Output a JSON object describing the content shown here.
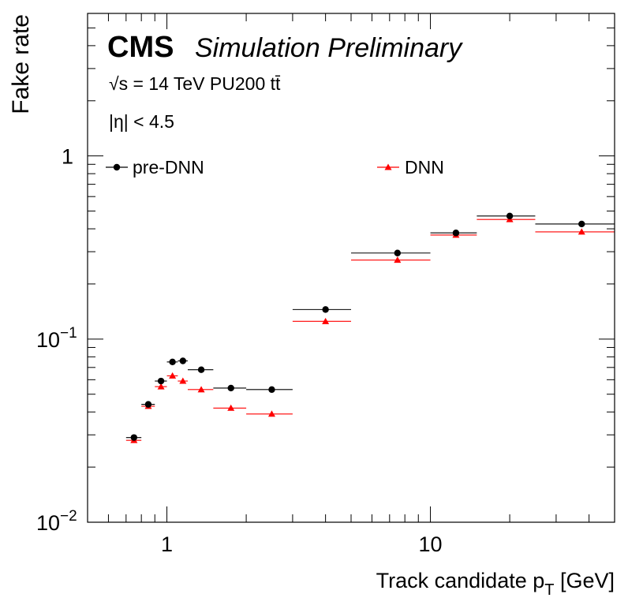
{
  "chart_data": {
    "type": "scatter",
    "title": "CMS",
    "subtitle": "Simulation Preliminary",
    "annotations": [
      "√s = 14 TeV PU200 tt̄",
      "|η| < 4.5"
    ],
    "xlabel": "Track candidate p_T [GeV]",
    "ylabel": "Fake rate",
    "xscale": "log",
    "yscale": "log",
    "xlim": [
      0.5,
      50
    ],
    "ylim": [
      0.01,
      6
    ],
    "x_tick_labels": [
      {
        "value": 1,
        "label": "1"
      },
      {
        "value": 10,
        "label": "10"
      }
    ],
    "y_tick_labels": [
      {
        "value": 0.01,
        "base": "10",
        "exp": "−2"
      },
      {
        "value": 0.1,
        "base": "10",
        "exp": "−1"
      },
      {
        "value": 1,
        "base": "1",
        "exp": ""
      }
    ],
    "legend_position": "top",
    "grid": false,
    "series": [
      {
        "name": "pre-DNN",
        "color": "#000000",
        "marker": "circle",
        "points": [
          {
            "x": 0.75,
            "xlo": 0.7,
            "xhi": 0.8,
            "y": 0.029
          },
          {
            "x": 0.85,
            "xlo": 0.8,
            "xhi": 0.9,
            "y": 0.044
          },
          {
            "x": 0.95,
            "xlo": 0.9,
            "xhi": 1.0,
            "y": 0.059
          },
          {
            "x": 1.05,
            "xlo": 1.0,
            "xhi": 1.1,
            "y": 0.075
          },
          {
            "x": 1.15,
            "xlo": 1.1,
            "xhi": 1.2,
            "y": 0.076
          },
          {
            "x": 1.35,
            "xlo": 1.2,
            "xhi": 1.5,
            "y": 0.068
          },
          {
            "x": 1.75,
            "xlo": 1.5,
            "xhi": 2.0,
            "y": 0.054
          },
          {
            "x": 2.5,
            "xlo": 2.0,
            "xhi": 3.0,
            "y": 0.053
          },
          {
            "x": 4.0,
            "xlo": 3.0,
            "xhi": 5.0,
            "y": 0.145
          },
          {
            "x": 7.5,
            "xlo": 5.0,
            "xhi": 10.0,
            "y": 0.295
          },
          {
            "x": 12.5,
            "xlo": 10.0,
            "xhi": 15.0,
            "y": 0.38
          },
          {
            "x": 20.0,
            "xlo": 15.0,
            "xhi": 25.0,
            "y": 0.47
          },
          {
            "x": 37.5,
            "xlo": 25.0,
            "xhi": 50.0,
            "y": 0.425
          }
        ]
      },
      {
        "name": "DNN",
        "color": "#ff0000",
        "marker": "triangle",
        "points": [
          {
            "x": 0.75,
            "xlo": 0.7,
            "xhi": 0.8,
            "y": 0.028
          },
          {
            "x": 0.85,
            "xlo": 0.8,
            "xhi": 0.9,
            "y": 0.043
          },
          {
            "x": 0.95,
            "xlo": 0.9,
            "xhi": 1.0,
            "y": 0.055
          },
          {
            "x": 1.05,
            "xlo": 1.0,
            "xhi": 1.1,
            "y": 0.063
          },
          {
            "x": 1.15,
            "xlo": 1.1,
            "xhi": 1.2,
            "y": 0.059
          },
          {
            "x": 1.35,
            "xlo": 1.2,
            "xhi": 1.5,
            "y": 0.053
          },
          {
            "x": 1.75,
            "xlo": 1.5,
            "xhi": 2.0,
            "y": 0.042
          },
          {
            "x": 2.5,
            "xlo": 2.0,
            "xhi": 3.0,
            "y": 0.039
          },
          {
            "x": 4.0,
            "xlo": 3.0,
            "xhi": 5.0,
            "y": 0.125
          },
          {
            "x": 7.5,
            "xlo": 5.0,
            "xhi": 10.0,
            "y": 0.27
          },
          {
            "x": 12.5,
            "xlo": 10.0,
            "xhi": 15.0,
            "y": 0.37
          },
          {
            "x": 20.0,
            "xlo": 15.0,
            "xhi": 25.0,
            "y": 0.45
          },
          {
            "x": 37.5,
            "xlo": 25.0,
            "xhi": 50.0,
            "y": 0.385
          }
        ]
      }
    ]
  }
}
